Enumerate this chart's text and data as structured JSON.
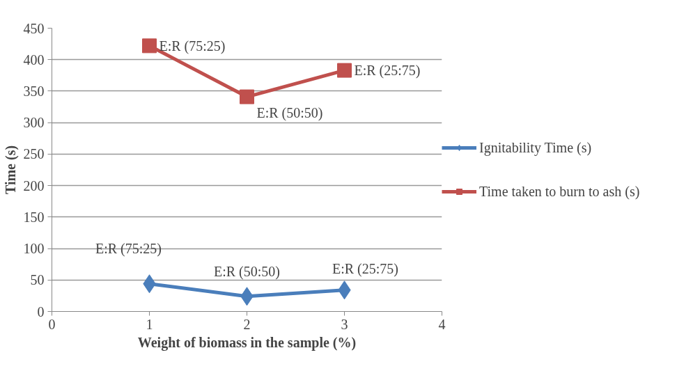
{
  "chart_data": {
    "type": "line",
    "xlabel": "Weight of biomass in the sample (%)",
    "ylabel": "Time (s)",
    "x": [
      1,
      2,
      3
    ],
    "series": [
      {
        "name": "Ignitability Time (s)",
        "color": "#4a7ebb",
        "values": [
          44,
          24,
          34
        ],
        "marker": "diamond"
      },
      {
        "name": "Time taken to burn to ash (s)",
        "color": "#c0504d",
        "values": [
          422,
          341,
          383
        ],
        "marker": "square"
      }
    ],
    "xlim": [
      0,
      4
    ],
    "xticks": [
      0,
      1,
      2,
      3,
      4
    ],
    "ylim": [
      0,
      450
    ],
    "yticks": [
      0,
      50,
      100,
      150,
      200,
      250,
      300,
      350,
      400,
      450
    ],
    "grid": "y",
    "legend": "right",
    "line_style": "solid",
    "annotations": [
      {
        "text": "E:R (75:25)",
        "x": 1,
        "y": 44
      },
      {
        "text": "E:R (50:50)",
        "x": 2,
        "y": 24
      },
      {
        "text": "E:R (25:75)",
        "x": 3,
        "y": 34
      },
      {
        "text": "E:R (75:25)",
        "x": 1,
        "y": 422
      },
      {
        "text": "E:R (50:50)",
        "x": 2,
        "y": 341
      },
      {
        "text": "E:R (25:75)",
        "x": 3,
        "y": 383
      }
    ]
  }
}
